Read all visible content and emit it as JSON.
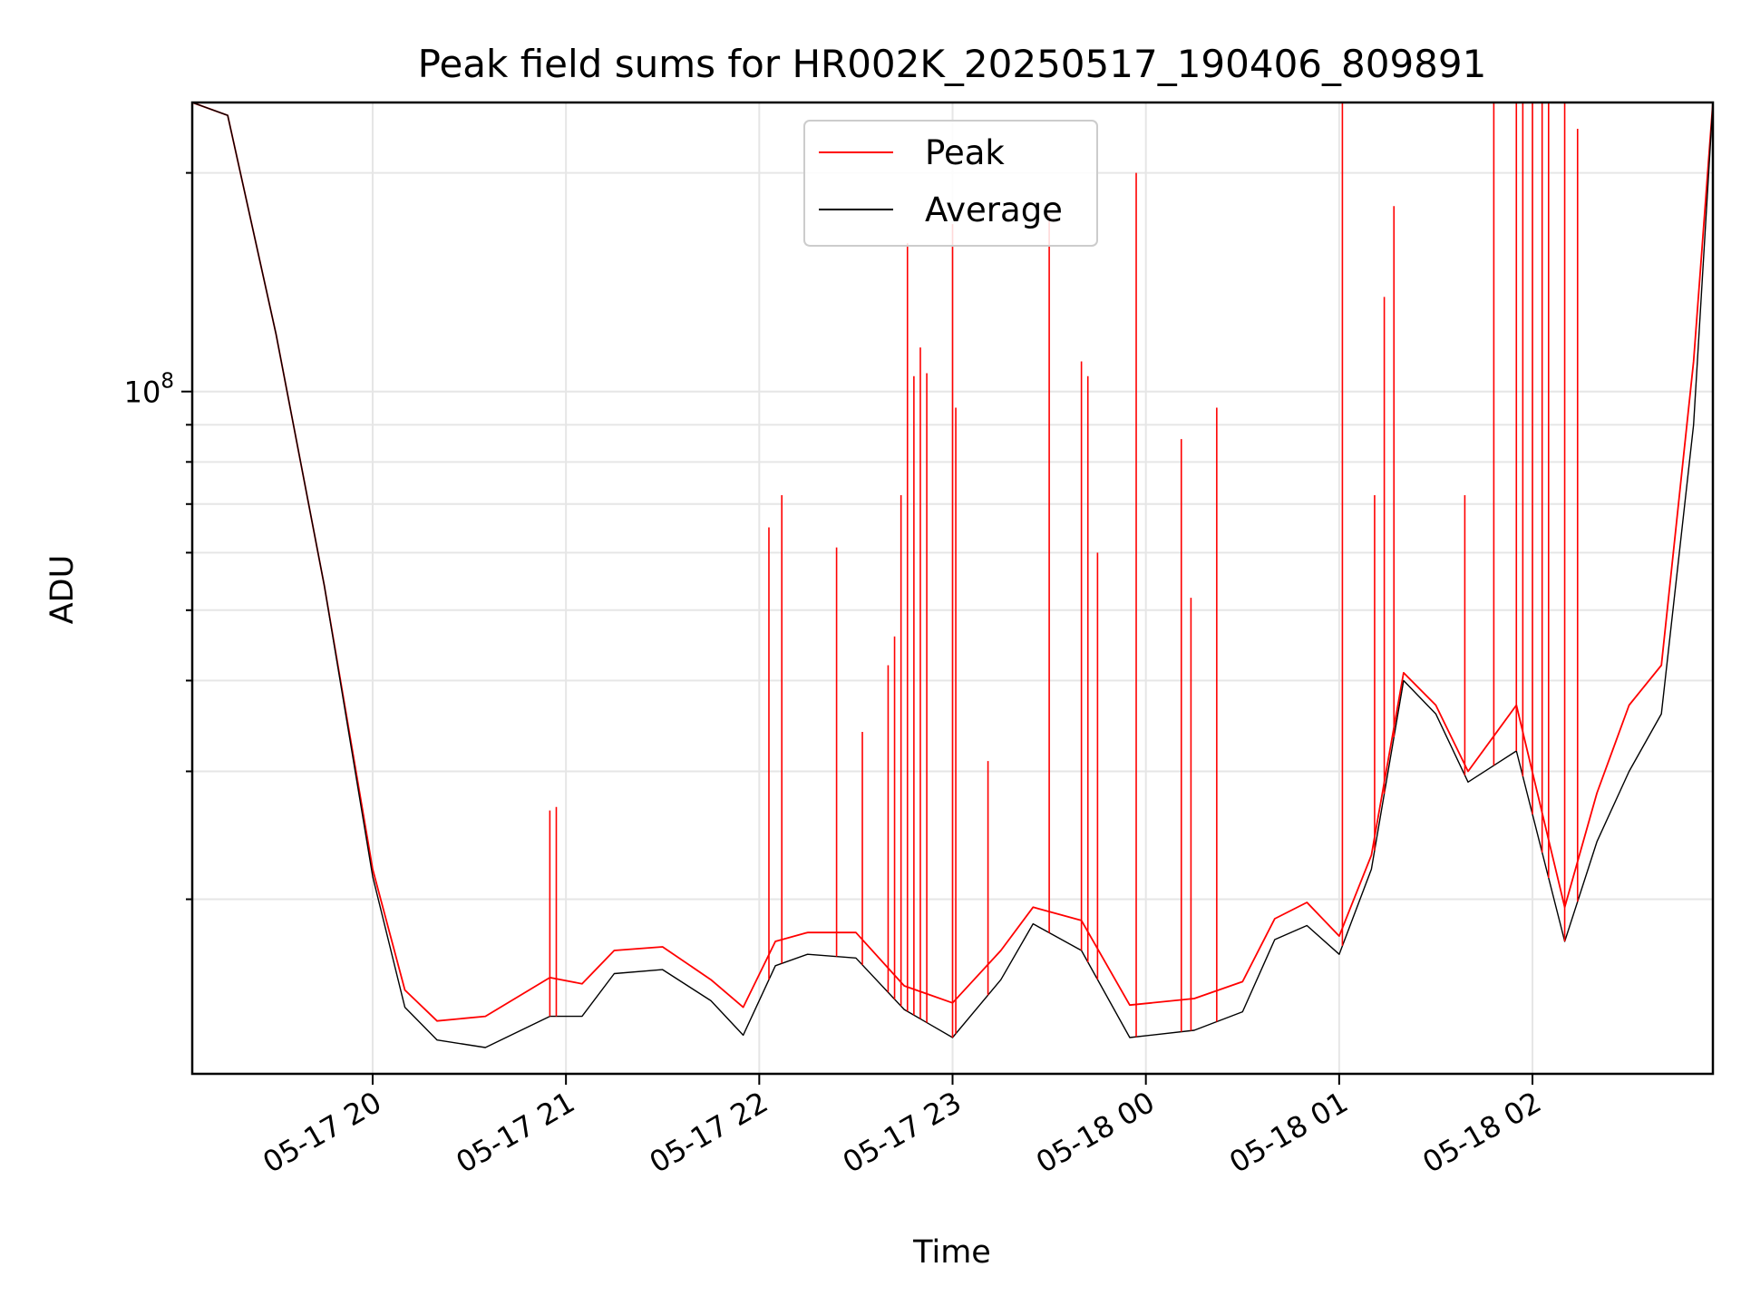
{
  "chart_data": {
    "type": "line",
    "title": "Peak field sums for HR002K_20250517_190406_809891",
    "xlabel": "Time",
    "ylabel": "ADU",
    "y_scale": "log",
    "grid": true,
    "legend_position": "top-center",
    "xlim": [
      "2025-05-17 19:04",
      "2025-05-18 02:56"
    ],
    "ylim": [
      11500000,
      250000000
    ],
    "x_ticks": [
      "05-17 20",
      "05-17 21",
      "05-17 22",
      "05-17 23",
      "05-18 00",
      "05-18 01",
      "05-18 02"
    ],
    "x_tick_values": [
      "2025-05-17 20:00",
      "2025-05-17 21:00",
      "2025-05-17 22:00",
      "2025-05-17 23:00",
      "2025-05-18 00:00",
      "2025-05-18 01:00",
      "2025-05-18 02:00"
    ],
    "y_ticks": [
      {
        "base": "10",
        "exp": "8",
        "value": 100000000
      }
    ],
    "series": [
      {
        "name": "Peak",
        "color": "#ff0000",
        "x": [
          "2025-05-17 19:04",
          "2025-05-17 19:15",
          "2025-05-17 19:30",
          "2025-05-17 19:45",
          "2025-05-17 20:00",
          "2025-05-17 20:10",
          "2025-05-17 20:20",
          "2025-05-17 20:35",
          "2025-05-17 20:55",
          "2025-05-17 21:05",
          "2025-05-17 21:15",
          "2025-05-17 21:30",
          "2025-05-17 21:45",
          "2025-05-17 21:55",
          "2025-05-17 22:05",
          "2025-05-17 22:15",
          "2025-05-17 22:30",
          "2025-05-17 22:45",
          "2025-05-17 23:00",
          "2025-05-17 23:15",
          "2025-05-17 23:25",
          "2025-05-17 23:40",
          "2025-05-17 23:55",
          "2025-05-18 00:15",
          "2025-05-18 00:30",
          "2025-05-18 00:40",
          "2025-05-18 00:50",
          "2025-05-18 01:00",
          "2025-05-18 01:10",
          "2025-05-18 01:20",
          "2025-05-18 01:30",
          "2025-05-18 01:40",
          "2025-05-18 01:55",
          "2025-05-18 02:10",
          "2025-05-18 02:20",
          "2025-05-18 02:30",
          "2025-05-18 02:40",
          "2025-05-18 02:50",
          "2025-05-18 02:56"
        ],
        "y": [
          250000000,
          240000000,
          120000000,
          54000000,
          22000000,
          15000000,
          13600000,
          13800000,
          15600000,
          15300000,
          17000000,
          17200000,
          15500000,
          14200000,
          17500000,
          18000000,
          18000000,
          15200000,
          14400000,
          17000000,
          19500000,
          18700000,
          14300000,
          14600000,
          15400000,
          18800000,
          19800000,
          17800000,
          23000000,
          41000000,
          37000000,
          30000000,
          37000000,
          19500000,
          28000000,
          37000000,
          42000000,
          110000000,
          250000000
        ],
        "spikes": [
          {
            "x": "2025-05-17 20:55",
            "y": 26500000
          },
          {
            "x": "2025-05-17 20:57",
            "y": 26800000
          },
          {
            "x": "2025-05-17 22:03",
            "y": 65000000
          },
          {
            "x": "2025-05-17 22:07",
            "y": 72000000
          },
          {
            "x": "2025-05-17 22:24",
            "y": 61000000
          },
          {
            "x": "2025-05-17 22:32",
            "y": 34000000
          },
          {
            "x": "2025-05-17 22:40",
            "y": 42000000
          },
          {
            "x": "2025-05-17 22:42",
            "y": 46000000
          },
          {
            "x": "2025-05-17 22:44",
            "y": 72000000
          },
          {
            "x": "2025-05-17 22:46",
            "y": 160000000
          },
          {
            "x": "2025-05-17 22:48",
            "y": 105000000
          },
          {
            "x": "2025-05-17 22:50",
            "y": 115000000
          },
          {
            "x": "2025-05-17 22:52",
            "y": 106000000
          },
          {
            "x": "2025-05-17 23:00",
            "y": 170000000
          },
          {
            "x": "2025-05-17 23:01",
            "y": 95000000
          },
          {
            "x": "2025-05-17 23:11",
            "y": 31000000
          },
          {
            "x": "2025-05-17 23:30",
            "y": 175000000
          },
          {
            "x": "2025-05-17 23:40",
            "y": 110000000
          },
          {
            "x": "2025-05-17 23:42",
            "y": 105000000
          },
          {
            "x": "2025-05-17 23:45",
            "y": 60000000
          },
          {
            "x": "2025-05-17 23:57",
            "y": 200000000
          },
          {
            "x": "2025-05-18 00:11",
            "y": 86000000
          },
          {
            "x": "2025-05-18 00:14",
            "y": 52000000
          },
          {
            "x": "2025-05-18 00:22",
            "y": 95000000
          },
          {
            "x": "2025-05-18 01:01",
            "y": 250000000
          },
          {
            "x": "2025-05-18 01:11",
            "y": 72000000
          },
          {
            "x": "2025-05-18 01:14",
            "y": 135000000
          },
          {
            "x": "2025-05-18 01:17",
            "y": 180000000
          },
          {
            "x": "2025-05-18 01:39",
            "y": 72000000
          },
          {
            "x": "2025-05-18 01:48",
            "y": 250000000
          },
          {
            "x": "2025-05-18 01:55",
            "y": 250000000
          },
          {
            "x": "2025-05-18 01:57",
            "y": 250000000
          },
          {
            "x": "2025-05-18 02:00",
            "y": 250000000
          },
          {
            "x": "2025-05-18 02:03",
            "y": 250000000
          },
          {
            "x": "2025-05-18 02:05",
            "y": 250000000
          },
          {
            "x": "2025-05-18 02:10",
            "y": 250000000
          },
          {
            "x": "2025-05-18 02:14",
            "y": 230000000
          }
        ]
      },
      {
        "name": "Average",
        "color": "#000000",
        "x": [
          "2025-05-17 19:04",
          "2025-05-17 19:15",
          "2025-05-17 19:30",
          "2025-05-17 19:45",
          "2025-05-17 20:00",
          "2025-05-17 20:10",
          "2025-05-17 20:20",
          "2025-05-17 20:35",
          "2025-05-17 20:55",
          "2025-05-17 21:05",
          "2025-05-17 21:15",
          "2025-05-17 21:30",
          "2025-05-17 21:45",
          "2025-05-17 21:55",
          "2025-05-17 22:05",
          "2025-05-17 22:15",
          "2025-05-17 22:30",
          "2025-05-17 22:45",
          "2025-05-17 23:00",
          "2025-05-17 23:15",
          "2025-05-17 23:25",
          "2025-05-17 23:40",
          "2025-05-17 23:55",
          "2025-05-18 00:15",
          "2025-05-18 00:30",
          "2025-05-18 00:40",
          "2025-05-18 00:50",
          "2025-05-18 01:00",
          "2025-05-18 01:10",
          "2025-05-18 01:20",
          "2025-05-18 01:30",
          "2025-05-18 01:40",
          "2025-05-18 01:55",
          "2025-05-18 02:10",
          "2025-05-18 02:20",
          "2025-05-18 02:30",
          "2025-05-18 02:40",
          "2025-05-18 02:50",
          "2025-05-18 02:56"
        ],
        "y": [
          250000000,
          240000000,
          120000000,
          54000000,
          21500000,
          14200000,
          12800000,
          12500000,
          13800000,
          13800000,
          15800000,
          16000000,
          14500000,
          13000000,
          16200000,
          16800000,
          16600000,
          14100000,
          12900000,
          15500000,
          18500000,
          17000000,
          12900000,
          13200000,
          14000000,
          17600000,
          18400000,
          16800000,
          22000000,
          40000000,
          36000000,
          29000000,
          32000000,
          17500000,
          24000000,
          30000000,
          36000000,
          90000000,
          250000000
        ]
      }
    ]
  }
}
